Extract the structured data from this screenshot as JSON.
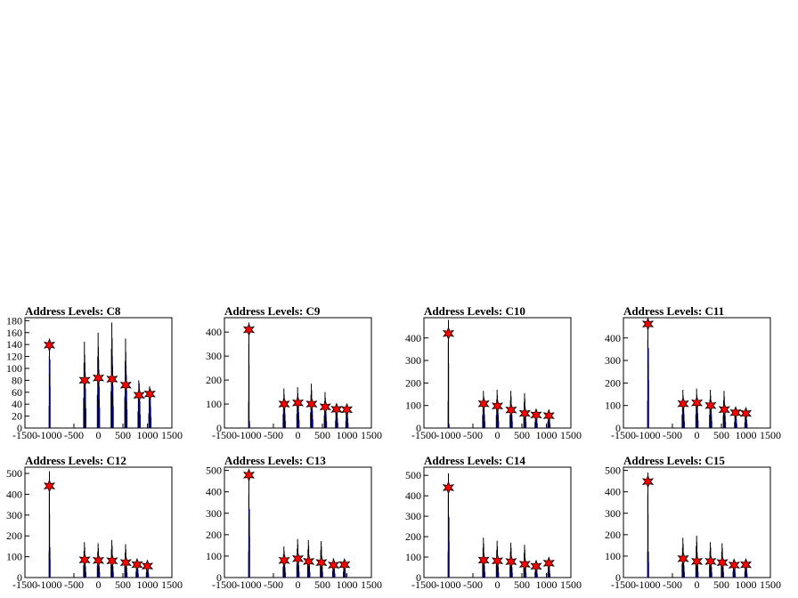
{
  "chart_data": [
    {
      "type": "histogram",
      "title": "Address Levels: C8",
      "xlim": [
        -1500,
        1500
      ],
      "ylim": [
        0,
        185
      ],
      "yticks": [
        0,
        20,
        40,
        60,
        80,
        100,
        120,
        140,
        160,
        180
      ],
      "xticks": [
        -1500,
        -1000,
        -500,
        0,
        500,
        1000,
        1500
      ],
      "peaks": [
        {
          "x": -1000,
          "black": 150,
          "blue": 115,
          "star": 139
        },
        {
          "x": -280,
          "black": 145,
          "blue": 110,
          "star": 80
        },
        {
          "x": 0,
          "black": 160,
          "blue": 115,
          "star": 84
        },
        {
          "x": 280,
          "black": 177,
          "blue": 120,
          "star": 82
        },
        {
          "x": 560,
          "black": 150,
          "blue": 105,
          "star": 72
        },
        {
          "x": 830,
          "black": 80,
          "blue": 75,
          "star": 55
        },
        {
          "x": 1050,
          "black": 70,
          "blue": 60,
          "star": 57
        }
      ]
    },
    {
      "type": "histogram",
      "title": "Address Levels: C9",
      "xlim": [
        -1500,
        1500
      ],
      "ylim": [
        0,
        460
      ],
      "yticks": [
        0,
        100,
        200,
        300,
        400
      ],
      "xticks": [
        -1500,
        -1000,
        -500,
        0,
        500,
        1000,
        1500
      ],
      "peaks": [
        {
          "x": -1000,
          "black": 440,
          "blue": 30,
          "star": 410
        },
        {
          "x": -280,
          "black": 165,
          "blue": 100,
          "star": 100
        },
        {
          "x": 0,
          "black": 170,
          "blue": 110,
          "star": 105
        },
        {
          "x": 280,
          "black": 185,
          "blue": 120,
          "star": 100
        },
        {
          "x": 560,
          "black": 150,
          "blue": 95,
          "star": 88
        },
        {
          "x": 790,
          "black": 90,
          "blue": 70,
          "star": 78
        },
        {
          "x": 1000,
          "black": 85,
          "blue": 70,
          "star": 77
        }
      ]
    },
    {
      "type": "histogram",
      "title": "Address Levels: C10",
      "xlim": [
        -1500,
        1500
      ],
      "ylim": [
        0,
        490
      ],
      "yticks": [
        0,
        100,
        200,
        300,
        400
      ],
      "xticks": [
        -1500,
        -1000,
        -500,
        0,
        500,
        1000,
        1500
      ],
      "peaks": [
        {
          "x": -1000,
          "black": 480,
          "blue": 20,
          "star": 420
        },
        {
          "x": -280,
          "black": 165,
          "blue": 100,
          "star": 108
        },
        {
          "x": 0,
          "black": 170,
          "blue": 105,
          "star": 98
        },
        {
          "x": 280,
          "black": 165,
          "blue": 100,
          "star": 80
        },
        {
          "x": 560,
          "black": 155,
          "blue": 90,
          "star": 65
        },
        {
          "x": 790,
          "black": 80,
          "blue": 65,
          "star": 58
        },
        {
          "x": 1050,
          "black": 80,
          "blue": 60,
          "star": 55
        }
      ]
    },
    {
      "type": "histogram",
      "title": "Address Levels: C11",
      "xlim": [
        -1500,
        1500
      ],
      "ylim": [
        0,
        490
      ],
      "yticks": [
        0,
        100,
        200,
        300,
        400
      ],
      "xticks": [
        -1500,
        -1000,
        -500,
        0,
        500,
        1000,
        1500
      ],
      "peaks": [
        {
          "x": -1000,
          "black": 490,
          "blue": 355,
          "star": 462
        },
        {
          "x": -280,
          "black": 170,
          "blue": 105,
          "star": 108
        },
        {
          "x": 0,
          "black": 175,
          "blue": 110,
          "star": 112
        },
        {
          "x": 280,
          "black": 170,
          "blue": 105,
          "star": 100
        },
        {
          "x": 560,
          "black": 165,
          "blue": 95,
          "star": 82
        },
        {
          "x": 790,
          "black": 80,
          "blue": 65,
          "star": 68
        },
        {
          "x": 1000,
          "black": 75,
          "blue": 60,
          "star": 65
        }
      ]
    },
    {
      "type": "histogram",
      "title": "Address Levels: C12",
      "xlim": [
        -1500,
        1500
      ],
      "ylim": [
        0,
        530
      ],
      "yticks": [
        0,
        100,
        200,
        300,
        400,
        500
      ],
      "xticks": [
        -1500,
        -1000,
        -500,
        0,
        500,
        1000,
        1500
      ],
      "peaks": [
        {
          "x": -1000,
          "black": 510,
          "blue": 145,
          "star": 440
        },
        {
          "x": -280,
          "black": 170,
          "blue": 90,
          "star": 85
        },
        {
          "x": 0,
          "black": 165,
          "blue": 90,
          "star": 82
        },
        {
          "x": 280,
          "black": 180,
          "blue": 90,
          "star": 80
        },
        {
          "x": 560,
          "black": 160,
          "blue": 80,
          "star": 72
        },
        {
          "x": 790,
          "black": 80,
          "blue": 65,
          "star": 62
        },
        {
          "x": 1000,
          "black": 75,
          "blue": 55,
          "star": 55
        }
      ]
    },
    {
      "type": "histogram",
      "title": "Address Levels: C13",
      "xlim": [
        -1500,
        1500
      ],
      "ylim": [
        0,
        515
      ],
      "yticks": [
        0,
        100,
        200,
        300,
        400,
        500
      ],
      "xticks": [
        -1500,
        -1000,
        -500,
        0,
        500,
        1000,
        1500
      ],
      "peaks": [
        {
          "x": -1000,
          "black": 490,
          "blue": 320,
          "star": 478
        },
        {
          "x": -280,
          "black": 145,
          "blue": 80,
          "star": 80
        },
        {
          "x": 0,
          "black": 180,
          "blue": 95,
          "star": 88
        },
        {
          "x": 220,
          "black": 175,
          "blue": 90,
          "star": 75
        },
        {
          "x": 480,
          "black": 170,
          "blue": 85,
          "star": 70
        },
        {
          "x": 730,
          "black": 90,
          "blue": 65,
          "star": 58
        },
        {
          "x": 950,
          "black": 80,
          "blue": 60,
          "star": 60
        }
      ]
    },
    {
      "type": "histogram",
      "title": "Address Levels: C14",
      "xlim": [
        -1500,
        1500
      ],
      "ylim": [
        0,
        540
      ],
      "yticks": [
        0,
        100,
        200,
        300,
        400,
        500
      ],
      "xticks": [
        -1500,
        -1000,
        -500,
        0,
        500,
        1000,
        1500
      ],
      "peaks": [
        {
          "x": -1000,
          "black": 510,
          "blue": 295,
          "star": 440
        },
        {
          "x": -280,
          "black": 195,
          "blue": 90,
          "star": 85
        },
        {
          "x": 0,
          "black": 180,
          "blue": 85,
          "star": 82
        },
        {
          "x": 280,
          "black": 170,
          "blue": 85,
          "star": 78
        },
        {
          "x": 560,
          "black": 160,
          "blue": 80,
          "star": 65
        },
        {
          "x": 790,
          "black": 80,
          "blue": 60,
          "star": 55
        },
        {
          "x": 1050,
          "black": 75,
          "blue": 55,
          "star": 70
        }
      ]
    },
    {
      "type": "histogram",
      "title": "Address Levels: C15",
      "xlim": [
        -1500,
        1500
      ],
      "ylim": [
        0,
        515
      ],
      "yticks": [
        0,
        100,
        200,
        300,
        400,
        500
      ],
      "xticks": [
        -1500,
        -1000,
        -500,
        0,
        500,
        1000,
        1500
      ],
      "peaks": [
        {
          "x": -1000,
          "black": 490,
          "blue": 120,
          "star": 448
        },
        {
          "x": -280,
          "black": 185,
          "blue": 90,
          "star": 88
        },
        {
          "x": 0,
          "black": 195,
          "blue": 90,
          "star": 75
        },
        {
          "x": 280,
          "black": 165,
          "blue": 80,
          "star": 75
        },
        {
          "x": 520,
          "black": 160,
          "blue": 80,
          "star": 70
        },
        {
          "x": 760,
          "black": 85,
          "blue": 65,
          "star": 58
        },
        {
          "x": 1000,
          "black": 80,
          "blue": 60,
          "star": 60
        }
      ]
    }
  ],
  "colors": {
    "axis": "#000000",
    "blue_hist": "#0000cc",
    "marker": "#ff0000"
  }
}
